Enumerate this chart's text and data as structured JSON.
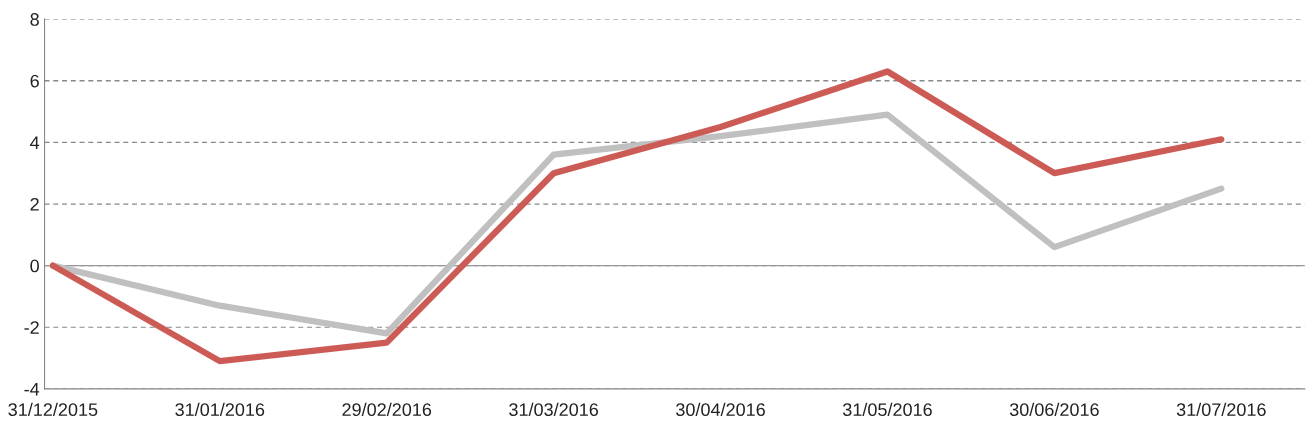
{
  "chart_data": {
    "type": "line",
    "categories": [
      "31/12/2015",
      "31/01/2016",
      "29/02/2016",
      "31/03/2016",
      "30/04/2016",
      "31/05/2016",
      "30/06/2016",
      "31/07/2016"
    ],
    "series": [
      {
        "color": "#c0c0c0",
        "values": [
          0,
          -1.3,
          -2.2,
          3.6,
          4.2,
          4.9,
          0.6,
          2.5
        ]
      },
      {
        "color": "#cd5b55",
        "values": [
          0,
          -3.1,
          -2.5,
          3.0,
          4.5,
          6.3,
          3.0,
          4.1
        ]
      }
    ],
    "ylim": [
      -4,
      8
    ],
    "yticks": [
      -4,
      -2,
      0,
      2,
      4,
      6,
      8
    ],
    "grid": "y",
    "line_style": "solid",
    "marker": "none",
    "ref_lines": [
      {
        "axis": "y",
        "value": 0,
        "color": "#999999",
        "line_style": "solid"
      }
    ]
  }
}
